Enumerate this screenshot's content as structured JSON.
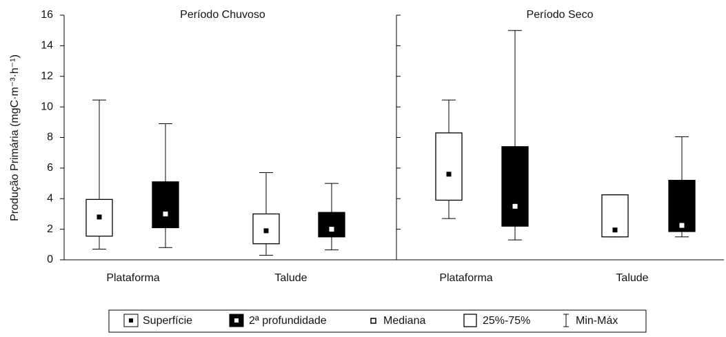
{
  "chart_data": [
    {
      "type": "box",
      "title": "Período Chuvoso",
      "y_label": "Produção Primária (mgC·m⁻³·h⁻¹)",
      "categories": [
        "Plataforma",
        "Talude"
      ],
      "ylim": [
        0,
        16
      ],
      "yticks": [
        0,
        2,
        4,
        6,
        8,
        10,
        12,
        14,
        16
      ],
      "series": [
        {
          "name": "Superfície",
          "color": "#ffffff",
          "min": [
            0.7,
            0.3
          ],
          "q1": [
            1.55,
            1.05
          ],
          "median": [
            2.8,
            1.9
          ],
          "q3": [
            3.95,
            3.0
          ],
          "max": [
            10.45,
            5.7
          ]
        },
        {
          "name": "2ª profundidade",
          "color": "#000000",
          "min": [
            0.8,
            0.65
          ],
          "q1": [
            2.1,
            1.5
          ],
          "median": [
            3.0,
            2.0
          ],
          "q3": [
            5.1,
            3.1
          ],
          "max": [
            8.9,
            5.0
          ]
        }
      ],
      "legend_extra": [
        "Mediana",
        "25%-75%",
        "Min-Máx"
      ]
    },
    {
      "type": "box",
      "title": "Período Seco",
      "categories": [
        "Plataforma",
        "Talude"
      ],
      "ylim": [
        0,
        16
      ],
      "yticks": [
        0,
        2,
        4,
        6,
        8,
        10,
        12,
        14,
        16
      ],
      "series": [
        {
          "name": "Superfície",
          "color": "#ffffff",
          "min": [
            2.7,
            1.5
          ],
          "q1": [
            3.9,
            1.5
          ],
          "median": [
            5.6,
            1.95
          ],
          "q3": [
            8.3,
            4.25
          ],
          "max": [
            10.45,
            4.25
          ]
        },
        {
          "name": "2ª profundidade",
          "color": "#000000",
          "min": [
            1.3,
            1.5
          ],
          "q1": [
            2.2,
            1.85
          ],
          "median": [
            3.5,
            2.25
          ],
          "q3": [
            7.4,
            5.2
          ],
          "max": [
            15,
            8.05
          ]
        }
      ]
    }
  ]
}
